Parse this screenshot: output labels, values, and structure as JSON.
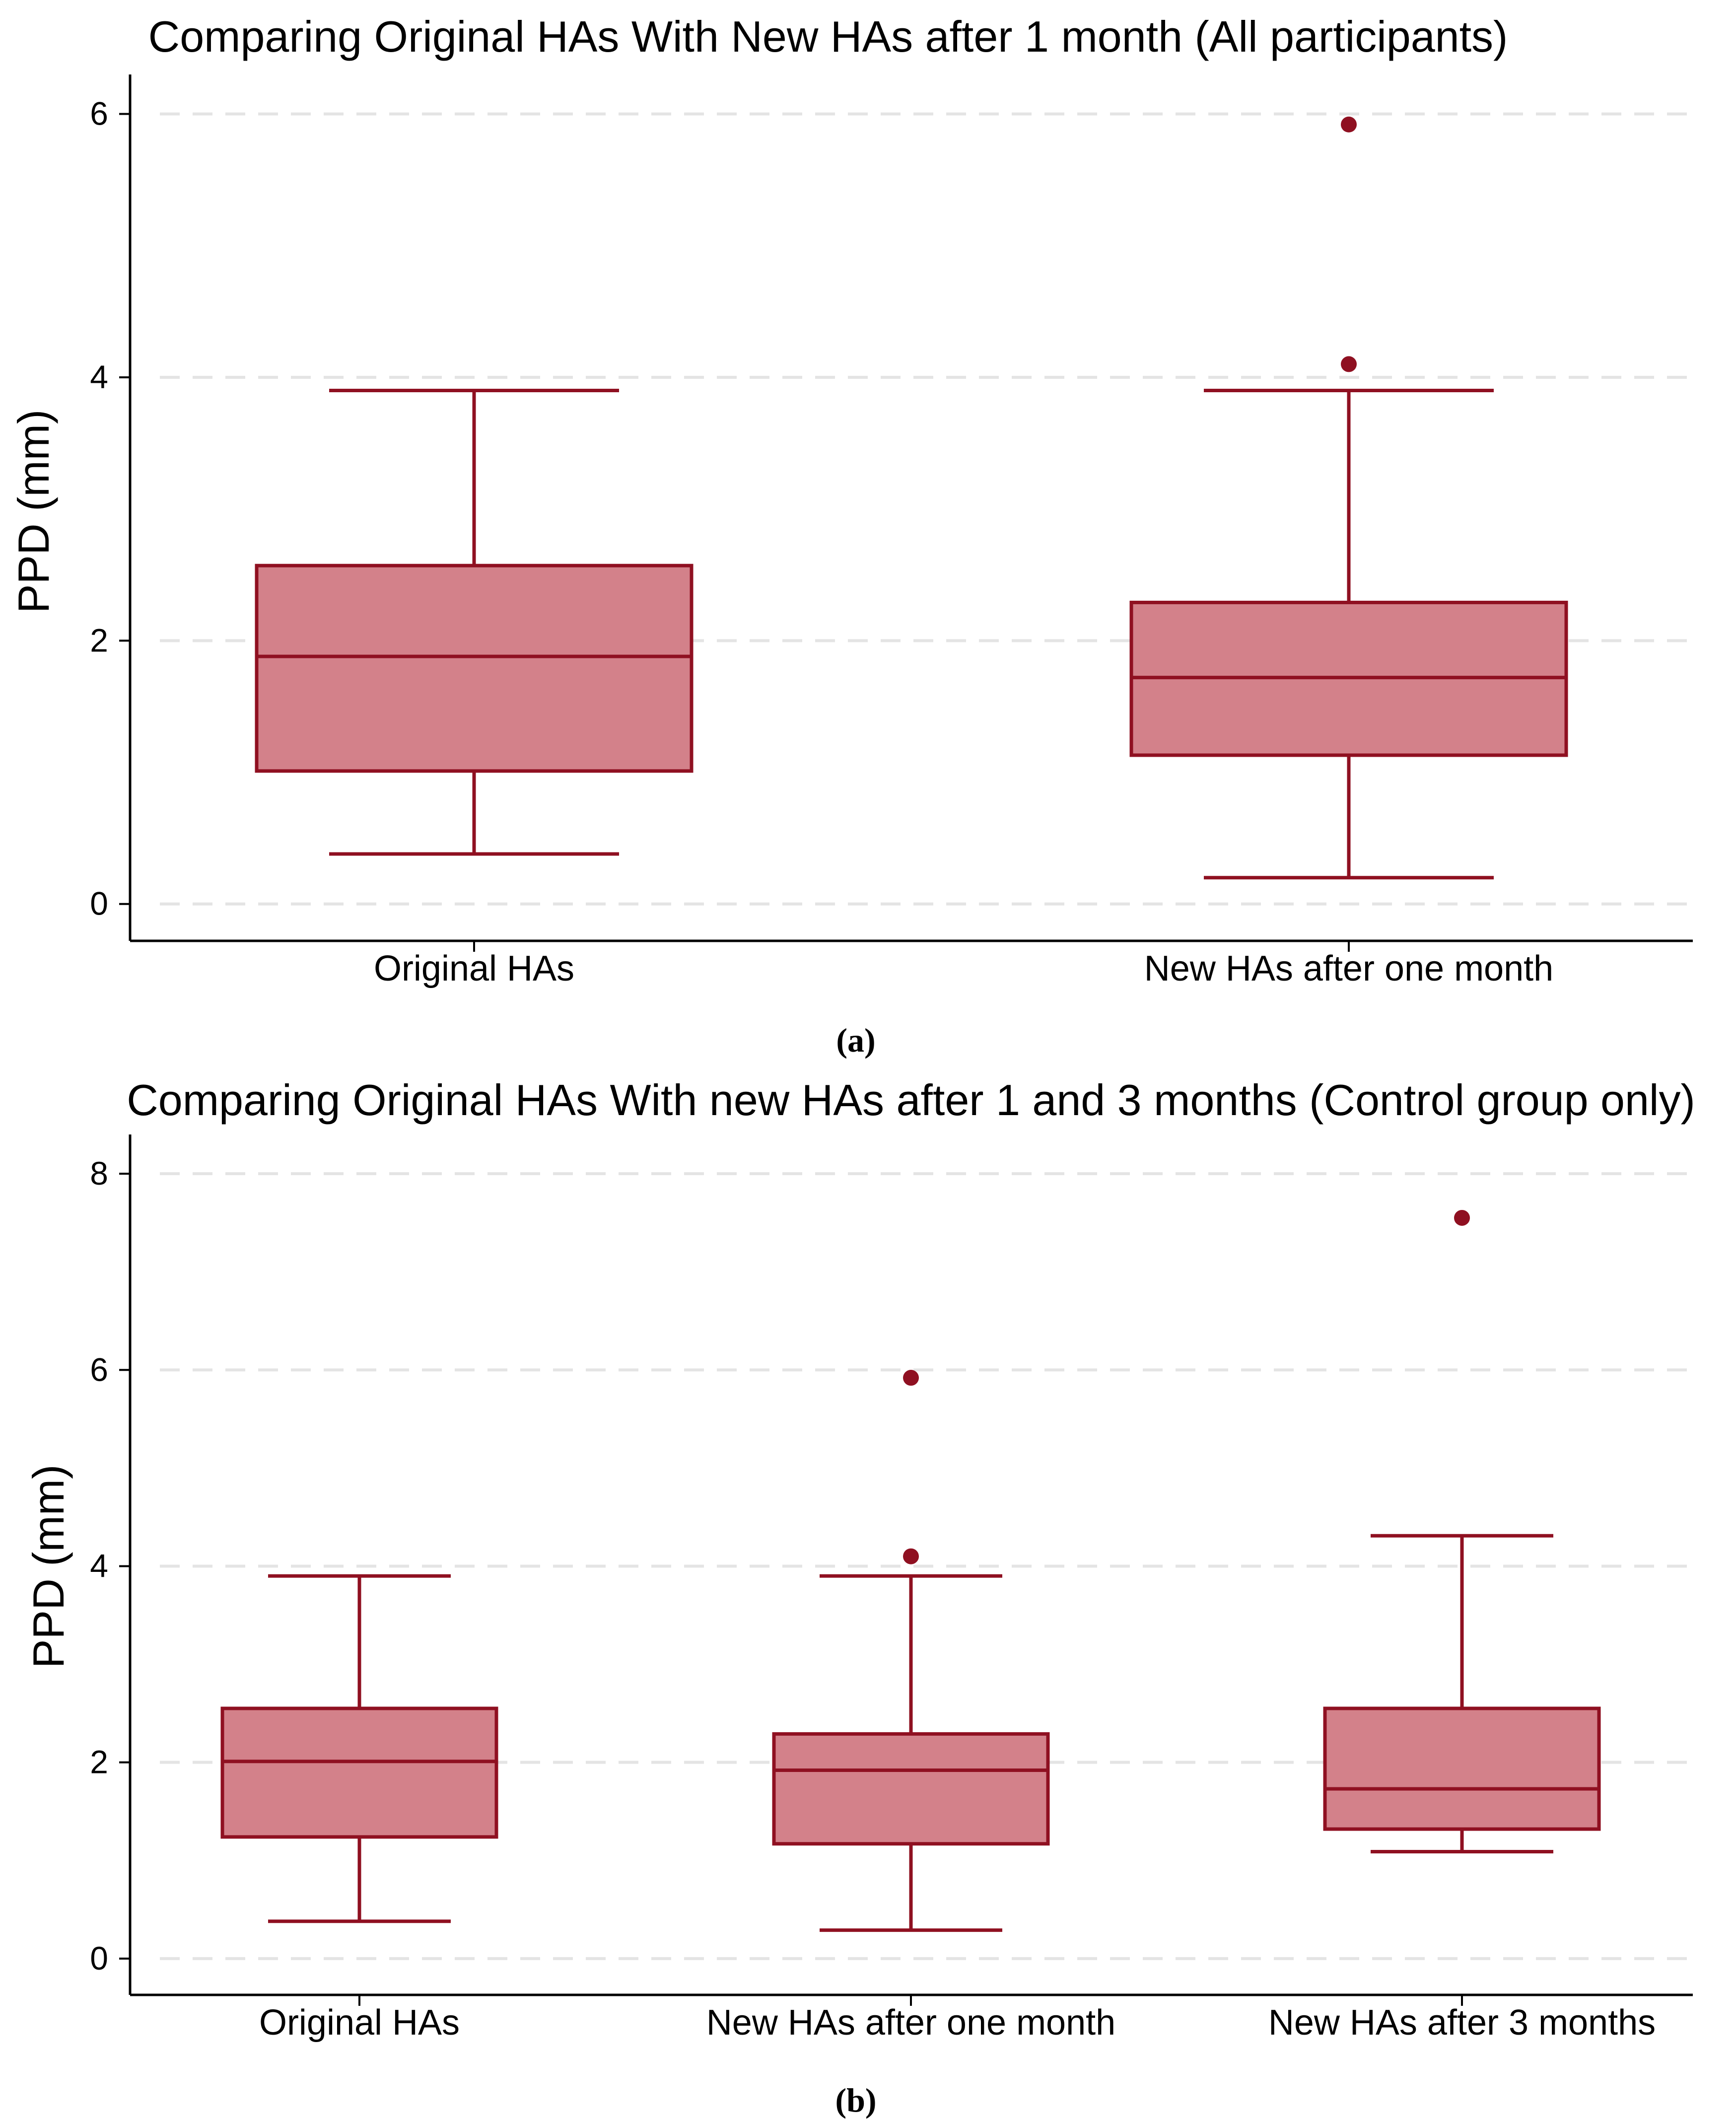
{
  "colors": {
    "box_fill": "#d3818a",
    "box_stroke": "#8f1021",
    "outlier": "#8f1021",
    "grid": "#e4e4e4",
    "axis": "#000000"
  },
  "chart_data": [
    {
      "id": "a",
      "type": "boxplot",
      "title": "Comparing Original HAs With New HAs after 1 month (All participants)",
      "ylabel": "PPD (mm)",
      "xlabel": "",
      "ylim": [
        -0.28,
        6.3
      ],
      "yticks": [
        0,
        2,
        4,
        6
      ],
      "grid": true,
      "caption": "(a)",
      "categories": [
        "Original HAs",
        "New HAs after one month"
      ],
      "boxes": [
        {
          "label": "Original HAs",
          "min": 0.38,
          "q1": 1.01,
          "median": 1.88,
          "q3": 2.57,
          "max": 3.9,
          "outliers": []
        },
        {
          "label": "New HAs after one month",
          "min": 0.2,
          "q1": 1.13,
          "median": 1.72,
          "q3": 2.29,
          "max": 3.9,
          "outliers": [
            4.1,
            5.92
          ]
        }
      ]
    },
    {
      "id": "b",
      "type": "boxplot",
      "title": "Comparing Original HAs With new HAs after 1 and 3 months (Control group only)",
      "ylabel": "PPD (mm)",
      "xlabel": "",
      "ylim": [
        -0.37,
        8.4
      ],
      "yticks": [
        0,
        2,
        4,
        6,
        8
      ],
      "grid": true,
      "caption": "(b)",
      "categories": [
        "Original HAs",
        "New HAs after one month",
        "New HAs after 3 months"
      ],
      "boxes": [
        {
          "label": "Original HAs",
          "min": 0.38,
          "q1": 1.24,
          "median": 2.01,
          "q3": 2.55,
          "max": 3.9,
          "outliers": []
        },
        {
          "label": "New HAs after one month",
          "min": 0.29,
          "q1": 1.17,
          "median": 1.92,
          "q3": 2.29,
          "max": 3.9,
          "outliers": [
            4.1,
            5.92
          ]
        },
        {
          "label": "New HAs after 3 months",
          "min": 1.09,
          "q1": 1.32,
          "median": 1.73,
          "q3": 2.55,
          "max": 4.31,
          "outliers": [
            7.55
          ]
        }
      ]
    }
  ]
}
